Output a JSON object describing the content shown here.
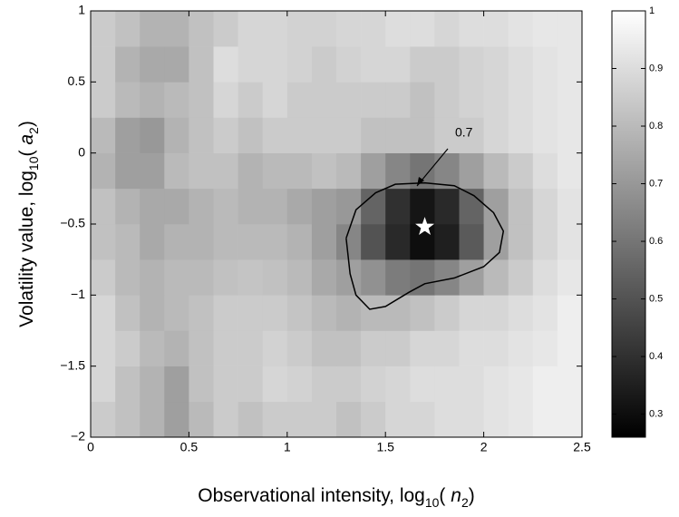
{
  "chart_data": {
    "type": "heatmap",
    "xlabel": [
      "Observational intensity, log",
      "10",
      "( ",
      "n",
      "2",
      ")"
    ],
    "ylabel": [
      "Volatility value, log",
      "10",
      "( ",
      "a",
      "2",
      ")"
    ],
    "xbins": [
      0,
      0.125,
      0.25,
      0.375,
      0.5,
      0.625,
      0.75,
      0.875,
      1,
      1.125,
      1.25,
      1.375,
      1.5,
      1.625,
      1.75,
      1.875,
      2,
      2.125,
      2.25,
      2.375,
      2.5
    ],
    "ybins": [
      -2,
      -1.75,
      -1.5,
      -1.25,
      -1,
      -0.75,
      -0.5,
      -0.25,
      0,
      0.25,
      0.5,
      0.75,
      1
    ],
    "z": [
      [
        0.85,
        0.82,
        0.78,
        0.72,
        0.8,
        0.85,
        0.82,
        0.85,
        0.85,
        0.85,
        0.82,
        0.85,
        0.88,
        0.88,
        0.9,
        0.9,
        0.92,
        0.93,
        0.95,
        0.95
      ],
      [
        0.88,
        0.82,
        0.78,
        0.72,
        0.82,
        0.85,
        0.85,
        0.88,
        0.87,
        0.85,
        0.85,
        0.87,
        0.88,
        0.9,
        0.9,
        0.9,
        0.92,
        0.93,
        0.95,
        0.95
      ],
      [
        0.88,
        0.85,
        0.8,
        0.78,
        0.82,
        0.85,
        0.85,
        0.87,
        0.85,
        0.82,
        0.82,
        0.85,
        0.85,
        0.88,
        0.88,
        0.9,
        0.9,
        0.92,
        0.93,
        0.95
      ],
      [
        0.88,
        0.82,
        0.78,
        0.8,
        0.82,
        0.85,
        0.85,
        0.85,
        0.83,
        0.8,
        0.78,
        0.8,
        0.8,
        0.82,
        0.85,
        0.88,
        0.88,
        0.9,
        0.92,
        0.95
      ],
      [
        0.85,
        0.8,
        0.78,
        0.8,
        0.8,
        0.82,
        0.83,
        0.82,
        0.8,
        0.75,
        0.72,
        0.68,
        0.62,
        0.6,
        0.65,
        0.72,
        0.8,
        0.85,
        0.9,
        0.93
      ],
      [
        0.82,
        0.8,
        0.75,
        0.78,
        0.78,
        0.8,
        0.8,
        0.8,
        0.78,
        0.72,
        0.65,
        0.5,
        0.38,
        0.3,
        0.35,
        0.52,
        0.72,
        0.82,
        0.88,
        0.92
      ],
      [
        0.82,
        0.78,
        0.75,
        0.75,
        0.78,
        0.8,
        0.78,
        0.78,
        0.75,
        0.72,
        0.7,
        0.55,
        0.4,
        0.32,
        0.38,
        0.55,
        0.72,
        0.82,
        0.88,
        0.92
      ],
      [
        0.78,
        0.72,
        0.72,
        0.8,
        0.82,
        0.82,
        0.78,
        0.8,
        0.8,
        0.82,
        0.8,
        0.72,
        0.65,
        0.6,
        0.65,
        0.72,
        0.8,
        0.85,
        0.9,
        0.93
      ],
      [
        0.8,
        0.72,
        0.7,
        0.78,
        0.82,
        0.85,
        0.82,
        0.85,
        0.85,
        0.85,
        0.85,
        0.82,
        0.82,
        0.82,
        0.85,
        0.85,
        0.88,
        0.9,
        0.92,
        0.93
      ],
      [
        0.85,
        0.8,
        0.78,
        0.8,
        0.82,
        0.88,
        0.85,
        0.88,
        0.85,
        0.85,
        0.85,
        0.85,
        0.85,
        0.82,
        0.85,
        0.87,
        0.88,
        0.9,
        0.92,
        0.93
      ],
      [
        0.85,
        0.78,
        0.75,
        0.75,
        0.82,
        0.9,
        0.88,
        0.88,
        0.87,
        0.85,
        0.87,
        0.88,
        0.88,
        0.85,
        0.85,
        0.87,
        0.88,
        0.9,
        0.92,
        0.93
      ],
      [
        0.85,
        0.82,
        0.78,
        0.78,
        0.82,
        0.85,
        0.88,
        0.88,
        0.87,
        0.87,
        0.88,
        0.88,
        0.9,
        0.9,
        0.88,
        0.9,
        0.9,
        0.92,
        0.93,
        0.93
      ]
    ],
    "xlim": [
      0,
      2.5
    ],
    "ylim": [
      -2,
      1
    ],
    "xticks": [
      0,
      0.5,
      1,
      1.5,
      2,
      2.5
    ],
    "yticks": [
      {
        "value": -2,
        "label": "−2"
      },
      {
        "value": -1.5,
        "label": "−1.5"
      },
      {
        "value": -1,
        "label": "−1"
      },
      {
        "value": -0.5,
        "label": "−0.5"
      },
      0,
      0.5,
      1
    ],
    "clim": [
      0.26,
      1
    ],
    "cticks": [
      0.3,
      0.4,
      0.5,
      0.6,
      0.7,
      0.8,
      0.9,
      1
    ],
    "contour": {
      "level": 0.7,
      "x": [
        1.3,
        1.35,
        1.45,
        1.55,
        1.7,
        1.85,
        1.95,
        2.05,
        2.1,
        2.08,
        2.0,
        1.85,
        1.7,
        1.62,
        1.5,
        1.42,
        1.35,
        1.32,
        1.3
      ],
      "y": [
        -0.6,
        -0.4,
        -0.28,
        -0.22,
        -0.21,
        -0.23,
        -0.3,
        -0.42,
        -0.55,
        -0.7,
        -0.8,
        -0.88,
        -0.92,
        -0.98,
        -1.08,
        -1.1,
        -1.0,
        -0.85,
        -0.6
      ]
    },
    "marker": {
      "x": 1.7,
      "y": -0.52
    }
  }
}
